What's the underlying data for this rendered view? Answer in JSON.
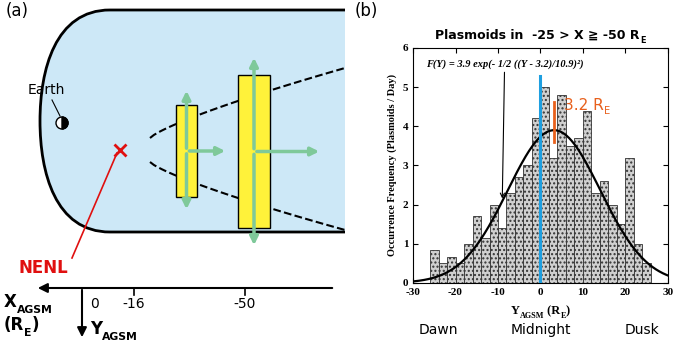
{
  "diagram": {
    "panel_label": "(a)",
    "earth": "Earth",
    "nenl": "NENL",
    "x_axis": {
      "label": [
        "X",
        [
          "AGSM"
        ]
      ],
      "unit": [
        "(R",
        [
          "E"
        ],
        ")"
      ],
      "ticks": [
        0,
        -16,
        -50
      ]
    },
    "y_axis": {
      "label": [
        "Y",
        [
          "AGSM"
        ]
      ]
    }
  },
  "chart_data": {
    "type": "bar",
    "panel_label": "(b)",
    "title": [
      "Plasmoids in  -25 > X ≧ -50 R",
      [
        "E"
      ]
    ],
    "xlabel": [
      "Y",
      [
        "AGSM"
      ],
      " (R",
      [
        "E"
      ],
      ")"
    ],
    "ylabel": "Occurrence Frequency (Plasmoids / Day)",
    "bins": [
      -26,
      -24,
      -22,
      -20,
      -18,
      -16,
      -14,
      -12,
      -10,
      -8,
      -6,
      -4,
      -2,
      0,
      2,
      4,
      6,
      8,
      10,
      12,
      14,
      16,
      18,
      20,
      22,
      24,
      26
    ],
    "values": [
      0.85,
      0.5,
      0.65,
      0.5,
      1.0,
      1.7,
      1.15,
      2.0,
      1.4,
      2.3,
      2.7,
      3.0,
      4.2,
      5.0,
      3.2,
      4.8,
      3.5,
      3.7,
      4.4,
      2.3,
      2.6,
      2.0,
      1.5,
      3.2,
      1.0,
      0.5
    ],
    "color": "#d0d0d0",
    "xlim": [
      -30,
      30
    ],
    "xticks": [
      -30,
      -20,
      -10,
      0,
      10,
      20,
      30
    ],
    "ylim": [
      0,
      6
    ],
    "yticks": [
      0,
      1,
      2,
      3,
      4,
      5,
      6
    ],
    "fit": {
      "label": "F(Y) = 3.9 exp(- 1/2 ((Y - 3.2)/10.9)²)",
      "amplitude": 3.9,
      "mean": 3.2,
      "sigma": 10.9,
      "color": "#000000"
    },
    "lines": [
      {
        "x": 0,
        "color": "#1e9fe0"
      },
      {
        "x": 3.2,
        "color": "#e8601c",
        "label": [
          "3.2 R",
          [
            "E"
          ]
        ]
      }
    ],
    "region_labels": [
      "Dawn",
      "Midnight",
      "Dusk"
    ]
  }
}
